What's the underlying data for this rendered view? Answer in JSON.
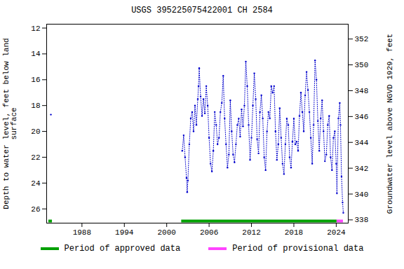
{
  "chart_data": {
    "type": "line",
    "title": "USGS 395225075422001 CH  2584",
    "y_label": "Depth to water level, feet below land surface",
    "y2_label": "Groundwater level above NGVD 1929, feet",
    "xlim": [
      1983.0,
      2025.7
    ],
    "xticks": [
      1988,
      1994,
      2000,
      2006,
      2012,
      2018,
      2024
    ],
    "ylim": [
      11.7,
      27.1
    ],
    "yticks": [
      12,
      14,
      16,
      18,
      20,
      22,
      24,
      26
    ],
    "y2lim": [
      353.15,
      337.75
    ],
    "y2ticks": [
      338,
      340,
      342,
      344,
      346,
      348,
      350,
      352
    ],
    "grid": false,
    "series": [
      {
        "name": "Depth to water level",
        "color": "#0000cc",
        "marker": "circle",
        "line_style": "dotted",
        "x": [
          1983.6,
          2002.2,
          2002.4,
          2002.6,
          2002.8,
          2002.9,
          2003.0,
          2003.2,
          2003.4,
          2003.6,
          2003.8,
          2004.0,
          2004.2,
          2004.4,
          2004.5,
          2004.6,
          2004.8,
          2005.0,
          2005.2,
          2005.4,
          2005.6,
          2005.8,
          2006.0,
          2006.2,
          2006.4,
          2006.6,
          2006.8,
          2007.0,
          2007.2,
          2007.4,
          2007.6,
          2007.8,
          2008.0,
          2008.2,
          2008.4,
          2008.6,
          2008.8,
          2009.0,
          2009.2,
          2009.4,
          2009.6,
          2009.8,
          2010.0,
          2010.2,
          2010.4,
          2010.6,
          2010.8,
          2011.0,
          2011.2,
          2011.4,
          2011.6,
          2011.8,
          2012.0,
          2012.2,
          2012.4,
          2012.6,
          2012.8,
          2013.0,
          2013.2,
          2013.4,
          2013.6,
          2013.8,
          2014.0,
          2014.2,
          2014.4,
          2014.6,
          2014.8,
          2015.0,
          2015.2,
          2015.4,
          2015.6,
          2015.8,
          2016.0,
          2016.2,
          2016.4,
          2016.6,
          2016.8,
          2017.0,
          2017.2,
          2017.4,
          2017.6,
          2017.8,
          2018.0,
          2018.2,
          2018.4,
          2018.6,
          2018.8,
          2019.0,
          2019.2,
          2019.4,
          2019.6,
          2019.8,
          2020.0,
          2020.2,
          2020.4,
          2020.6,
          2020.8,
          2021.0,
          2021.2,
          2021.4,
          2021.6,
          2021.8,
          2022.0,
          2022.2,
          2022.4,
          2022.6,
          2022.8,
          2023.0,
          2023.2,
          2023.4,
          2023.6,
          2023.8,
          2024.0,
          2024.1,
          2024.3,
          2024.5,
          2024.6,
          2024.75,
          2024.9,
          2025.0
        ],
        "values": [
          18.7,
          21.5,
          20.3,
          22.0,
          23.6,
          24.7,
          23.8,
          21.0,
          19.0,
          18.5,
          20.0,
          18.0,
          19.5,
          17.5,
          16.5,
          15.1,
          17.3,
          18.8,
          17.5,
          18.6,
          16.5,
          18.0,
          20.5,
          22.5,
          23.1,
          21.5,
          18.5,
          19.5,
          21.0,
          20.5,
          18.5,
          17.8,
          15.7,
          19.0,
          21.0,
          22.8,
          21.8,
          17.6,
          20.0,
          21.8,
          22.4,
          21.0,
          19.5,
          19.0,
          20.4,
          18.3,
          19.6,
          18.0,
          14.6,
          16.5,
          19.5,
          22.2,
          20.5,
          18.0,
          15.5,
          17.5,
          20.6,
          21.7,
          18.5,
          17.2,
          19.0,
          22.0,
          23.0,
          20.0,
          18.5,
          19.0,
          16.5,
          17.0,
          16.5,
          20.0,
          22.2,
          21.0,
          18.2,
          20.5,
          22.5,
          23.3,
          21.0,
          19.0,
          19.5,
          22.0,
          22.8,
          20.8,
          19.0,
          21.0,
          20.8,
          21.5,
          18.8,
          17.0,
          18.5,
          20.0,
          17.2,
          15.4,
          16.8,
          18.5,
          20.5,
          22.5,
          19.5,
          14.5,
          16.0,
          19.2,
          21.5,
          19.0,
          17.6,
          20.0,
          22.3,
          21.8,
          19.5,
          18.8,
          22.0,
          23.0,
          20.5,
          20.0,
          22.5,
          24.8,
          19.0,
          17.8,
          19.5,
          23.5,
          25.5,
          26.3
        ]
      }
    ],
    "periods": [
      {
        "name": "Period of approved data",
        "color": "#00a000",
        "ranges": [
          [
            1983.3,
            1983.8
          ],
          [
            2002.1,
            2024.1
          ]
        ]
      },
      {
        "name": "Period of provisional data",
        "color": "#ff44ff",
        "ranges": [
          [
            2024.1,
            2025.0
          ]
        ]
      }
    ]
  }
}
